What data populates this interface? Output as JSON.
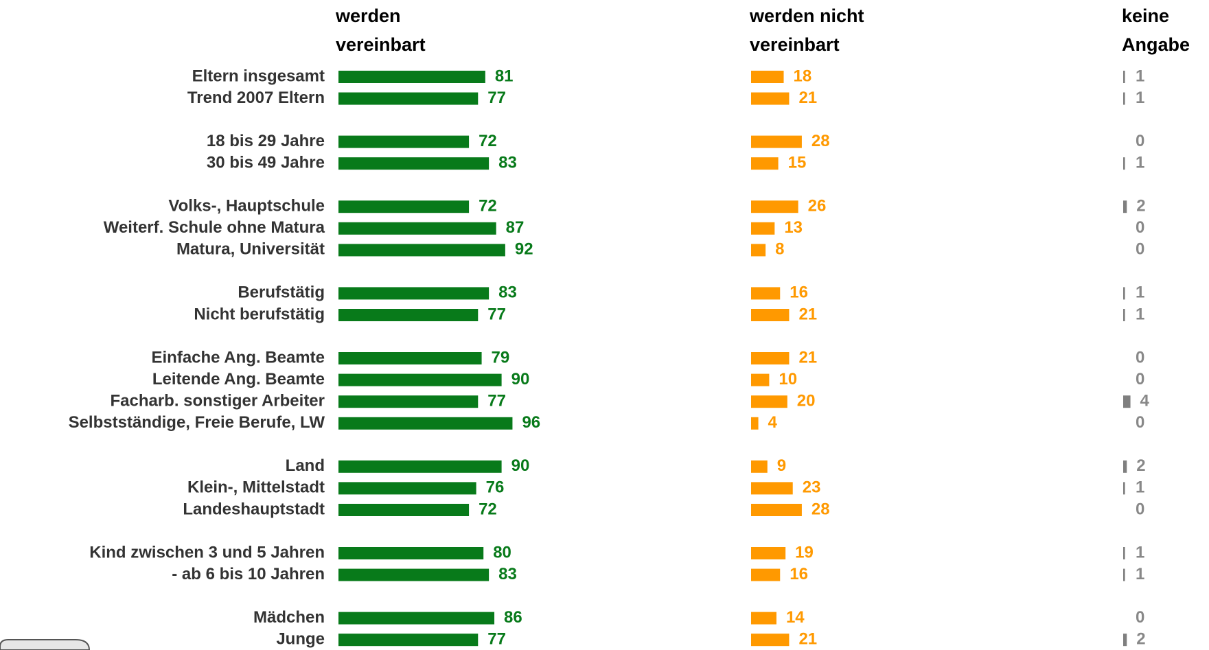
{
  "chart_data": {
    "type": "bar",
    "orientation": "horizontal",
    "categories": [
      "Eltern insgesamt",
      "Trend 2007 Eltern",
      "18 bis 29 Jahre",
      "30 bis 49 Jahre",
      "Volks-, Hauptschule",
      "Weiterf. Schule ohne Matura",
      "Matura, Universität",
      "Berufstätig",
      "Nicht berufstätig",
      "Einfache Ang. Beamte",
      "Leitende Ang. Beamte",
      "Facharb. sonstiger Arbeiter",
      "Selbstständige, Freie Berufe, LW",
      "Land",
      "Klein-, Mittelstadt",
      "Landeshauptstadt",
      "Kind zwischen 3 und 5 Jahren",
      "- ab 6 bis 10 Jahren",
      "Mädchen",
      "Junge"
    ],
    "series": [
      {
        "name": "werden vereinbart",
        "color": "#087a1a",
        "values": [
          81,
          77,
          72,
          83,
          72,
          87,
          92,
          83,
          77,
          79,
          90,
          77,
          96,
          90,
          76,
          72,
          80,
          83,
          86,
          77
        ]
      },
      {
        "name": "werden nicht vereinbart",
        "color": "#ff9900",
        "values": [
          18,
          21,
          28,
          15,
          26,
          13,
          8,
          16,
          21,
          21,
          10,
          20,
          4,
          9,
          23,
          28,
          19,
          16,
          14,
          21
        ]
      },
      {
        "name": "keine Angabe",
        "color": "#7f7f7f",
        "values": [
          1,
          1,
          0,
          1,
          2,
          0,
          0,
          1,
          1,
          0,
          0,
          4,
          0,
          2,
          1,
          0,
          1,
          1,
          0,
          2
        ]
      }
    ],
    "xlim": [
      0,
      100
    ]
  }
}
